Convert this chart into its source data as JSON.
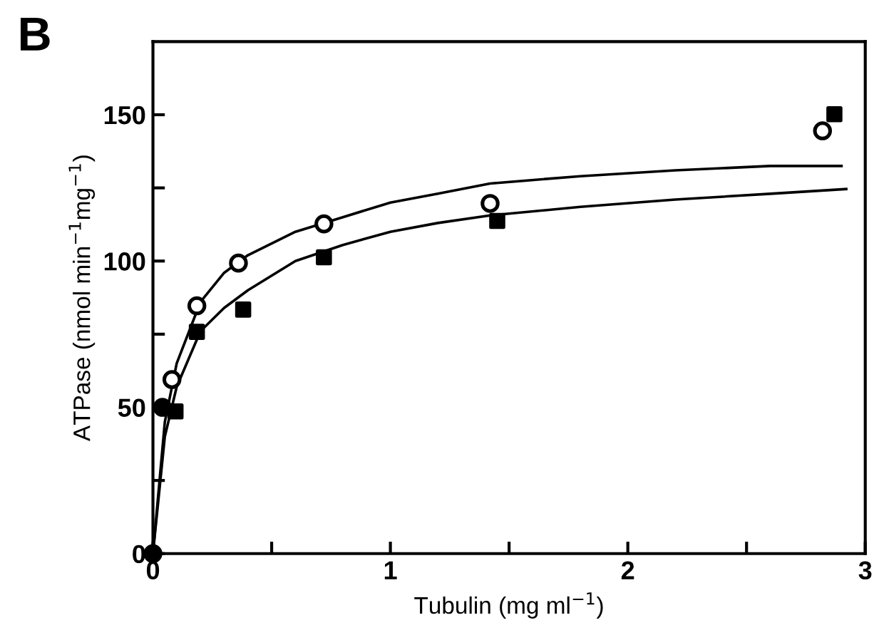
{
  "chart_data": {
    "type": "scatter",
    "title": "B",
    "xlabel": "Tubulin (mg ml$^{−1}$)",
    "ylabel": "ATPase (nmol min$^{−1}$mg$^{−1}$)",
    "xlim": [
      0,
      3
    ],
    "ylim": [
      0,
      175
    ],
    "xticks": [
      0,
      {
        "value": 0.5,
        "label": null
      },
      1,
      {
        "value": 1.5,
        "label": null
      },
      2,
      {
        "value": 2.5,
        "label": null
      },
      3
    ],
    "yticks": [
      0,
      {
        "value": 25,
        "label": null
      },
      50,
      {
        "value": 75,
        "label": null
      },
      100,
      {
        "value": 125,
        "label": null
      },
      150
    ],
    "grid": false,
    "legend": false,
    "series": [
      {
        "type": "line",
        "color": "#000000",
        "marker": "none",
        "line_style": "solid",
        "x": [
          0,
          0.05,
          0.1,
          0.2,
          0.3,
          0.4,
          0.6,
          0.8,
          1.0,
          1.2,
          1.42,
          1.8,
          2.2,
          2.6,
          2.9
        ],
        "values": [
          0,
          45,
          65,
          86,
          96,
          102,
          110,
          115,
          120,
          123,
          126.5,
          129,
          131,
          132.5,
          132.5
        ]
      },
      {
        "type": "line",
        "color": "#000000",
        "marker": "none",
        "line_style": "solid",
        "x": [
          0,
          0.05,
          0.1,
          0.2,
          0.3,
          0.4,
          0.6,
          0.8,
          1.0,
          1.2,
          1.42,
          1.8,
          2.2,
          2.6,
          2.92
        ],
        "values": [
          0,
          40,
          57,
          76,
          84,
          90,
          100,
          105.5,
          110,
          113,
          115.6,
          118.5,
          121,
          123,
          124.6
        ]
      },
      {
        "marker": "circle",
        "x": [
          0.08,
          0.185,
          0.36,
          0.72,
          1.42,
          2.82
        ],
        "values": [
          59.5,
          84.7,
          99.3,
          112.7,
          119.7,
          144.5
        ]
      },
      {
        "color": "#000000",
        "marker": "square",
        "x": [
          0.095,
          0.185,
          0.38,
          0.72,
          1.45,
          2.87
        ],
        "values": [
          48.6,
          75.8,
          83.4,
          101.3,
          113.7,
          150.2
        ]
      },
      {
        "color": "#000000",
        "marker": "circle",
        "x": [
          0,
          0.04
        ],
        "values": [
          0,
          50
        ]
      }
    ]
  }
}
